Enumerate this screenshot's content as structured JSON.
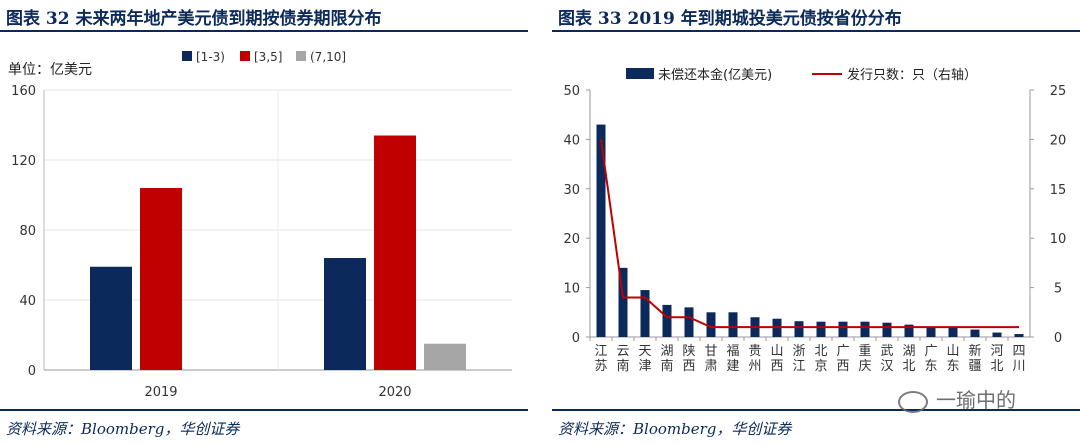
{
  "left": {
    "title": "图表 32   未来两年地产美元债到期按债券期限分布",
    "source": "资料来源：Bloomberg，华创证券",
    "chart_data": {
      "type": "bar",
      "unit_label": "单位：亿美元",
      "categories": [
        "2019",
        "2020"
      ],
      "series": [
        {
          "name": "[1-3)",
          "color": "#0b2a5b",
          "values": [
            59,
            64
          ]
        },
        {
          "name": "[3,5]",
          "color": "#c00000",
          "values": [
            104,
            134
          ]
        },
        {
          "name": "(7,10]",
          "color": "#a6a6a6",
          "values": [
            0,
            15
          ]
        }
      ],
      "ylim": [
        0,
        160
      ],
      "yticks": [
        "0",
        "40",
        "80",
        "120",
        "160"
      ],
      "legend": "top"
    }
  },
  "right": {
    "title": "图表 33   2019 年到期城投美元债按省份分布",
    "source": "资料来源：Bloomberg，华创证券",
    "chart_data": {
      "type": "bar+line",
      "categories": [
        "江苏",
        "云南",
        "天津",
        "湖南",
        "陕西",
        "甘肃",
        "福建",
        "贵州",
        "山西",
        "浙江",
        "北京",
        "广西",
        "重庆",
        "武汉",
        "湖北",
        "广东",
        "山东",
        "新疆",
        "河北",
        "四川"
      ],
      "series": [
        {
          "name": "未偿还本金(亿美元)",
          "color": "#0b2a5b",
          "axis": "left",
          "type": "bar",
          "values": [
            43,
            14,
            9.5,
            6.5,
            6,
            5,
            5,
            4,
            3.7,
            3.2,
            3.1,
            3.1,
            3.1,
            2.9,
            2.5,
            2,
            1.9,
            1.5,
            0.9,
            0.6
          ]
        },
        {
          "name": "发行只数：只（右轴）",
          "color": "#c00000",
          "axis": "right",
          "type": "line",
          "values": [
            20,
            4,
            4,
            2,
            2,
            1,
            1,
            1,
            1,
            1,
            1,
            1,
            1,
            1,
            1,
            1,
            1,
            1,
            1,
            1
          ]
        }
      ],
      "ylim_left": [
        0,
        50
      ],
      "ylim_right": [
        0,
        25
      ],
      "yticks_left": [
        "0",
        "10",
        "20",
        "30",
        "40",
        "50"
      ],
      "yticks_right": [
        "0",
        "5",
        "10",
        "15",
        "20",
        "25"
      ],
      "legend": "top"
    },
    "watermark": "一瑜中的"
  }
}
